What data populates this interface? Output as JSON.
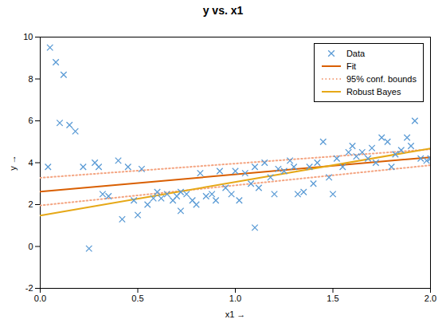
{
  "chart_data": {
    "type": "scatter",
    "title": "y vs. x1",
    "xlabel": "x1",
    "ylabel": "y",
    "xlim": [
      0,
      2
    ],
    "ylim": [
      -2,
      10
    ],
    "xticks": [
      {
        "value": 0,
        "label": "0.0"
      },
      0.5,
      {
        "value": 1,
        "label": "1.0"
      },
      1.5,
      {
        "value": 2,
        "label": "2.0"
      }
    ],
    "yticks": [
      -2,
      0,
      2,
      4,
      6,
      8,
      10
    ],
    "grid": false,
    "legend": "upper right",
    "series": [
      {
        "name": "Data",
        "type": "scatter",
        "color": "#5B9BD5",
        "marker": "x",
        "x": [
          0.05,
          0.08,
          0.12,
          0.15,
          0.18,
          0.04,
          0.22,
          0.28,
          0.3,
          0.32,
          0.35,
          0.4,
          0.45,
          0.48,
          0.5,
          0.52,
          0.55,
          0.58,
          0.6,
          0.62,
          0.65,
          0.68,
          0.7,
          0.72,
          0.75,
          0.78,
          0.8,
          0.82,
          0.85,
          0.88,
          0.9,
          0.92,
          0.95,
          0.98,
          1.0,
          1.02,
          1.05,
          1.08,
          1.1,
          1.12,
          1.15,
          1.18,
          1.2,
          1.22,
          1.25,
          1.28,
          1.3,
          1.32,
          1.35,
          1.38,
          1.4,
          1.42,
          1.45,
          1.48,
          1.5,
          1.52,
          1.55,
          1.58,
          1.6,
          1.62,
          1.65,
          1.68,
          1.7,
          1.72,
          1.75,
          1.78,
          1.8,
          1.82,
          1.85,
          1.88,
          1.9,
          1.92,
          1.95,
          1.98,
          2.0,
          0.1,
          0.25,
          0.42,
          0.72,
          1.1
        ],
        "values": [
          9.5,
          8.8,
          8.2,
          5.8,
          5.5,
          3.8,
          3.8,
          4.0,
          3.8,
          2.5,
          2.4,
          4.1,
          3.8,
          2.2,
          1.5,
          3.7,
          2.0,
          2.3,
          2.6,
          2.3,
          2.5,
          2.2,
          2.4,
          2.6,
          2.5,
          2.2,
          2.0,
          3.5,
          2.4,
          2.5,
          2.2,
          3.6,
          2.8,
          2.5,
          3.6,
          2.2,
          3.5,
          3.0,
          3.8,
          2.8,
          4.0,
          3.3,
          2.5,
          3.7,
          3.6,
          4.1,
          3.8,
          2.5,
          2.6,
          3.8,
          3.0,
          4.0,
          5.0,
          3.3,
          2.5,
          4.2,
          3.8,
          4.5,
          4.8,
          4.3,
          4.5,
          4.2,
          4.7,
          4.0,
          5.2,
          5.0,
          3.8,
          4.4,
          4.6,
          5.2,
          4.8,
          6.0,
          4.2,
          4.1,
          4.2,
          5.9,
          -0.1,
          1.3,
          1.7,
          0.9
        ]
      },
      {
        "name": "Fit",
        "type": "line",
        "color": "#D95F02",
        "line_style": "solid",
        "x": [
          0,
          2
        ],
        "values": [
          2.62,
          4.26
        ]
      },
      {
        "name": "95% conf. bounds",
        "type": "line",
        "color": "#F4A582",
        "line_style": "dotted",
        "x": [
          0,
          2
        ],
        "values": [
          3.28,
          4.64
        ]
      },
      {
        "name": "95% conf. bounds",
        "type": "line",
        "color": "#F4A582",
        "line_style": "dotted",
        "x": [
          0,
          2
        ],
        "values": [
          1.96,
          3.88
        ]
      },
      {
        "name": "Robust Bayes",
        "type": "line",
        "color": "#E6A817",
        "line_style": "solid",
        "x": [
          0,
          2
        ],
        "values": [
          1.48,
          4.68
        ]
      }
    ]
  }
}
